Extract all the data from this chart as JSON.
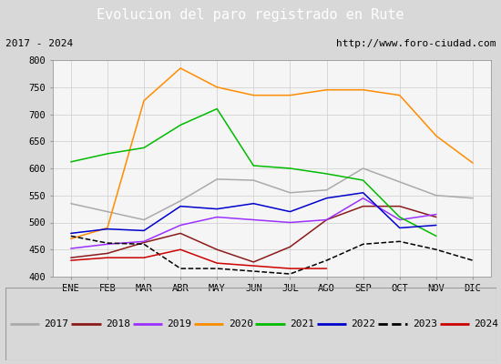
{
  "title": "Evolucion del paro registrado en Rute",
  "title_bg": "#4472c4",
  "subtitle_left": "2017 - 2024",
  "subtitle_right": "http://www.foro-ciudad.com",
  "xlabel_ticks": [
    "ENE",
    "FEB",
    "MAR",
    "ABR",
    "MAY",
    "JUN",
    "JUL",
    "AGO",
    "SEP",
    "OCT",
    "NOV",
    "DIC"
  ],
  "ylim": [
    400,
    800
  ],
  "yticks": [
    400,
    450,
    500,
    550,
    600,
    650,
    700,
    750,
    800
  ],
  "series": {
    "2017": {
      "color": "#aaaaaa",
      "linestyle": "-",
      "data": [
        535,
        520,
        505,
        540,
        580,
        578,
        555,
        560,
        600,
        575,
        550,
        545
      ]
    },
    "2018": {
      "color": "#8b1a1a",
      "linestyle": "-",
      "data": [
        435,
        443,
        463,
        480,
        450,
        427,
        455,
        505,
        530,
        530,
        510,
        null
      ]
    },
    "2019": {
      "color": "#9b30ff",
      "linestyle": "-",
      "data": [
        452,
        460,
        465,
        495,
        510,
        505,
        500,
        505,
        545,
        505,
        515,
        null
      ]
    },
    "2020": {
      "color": "#ff8c00",
      "linestyle": "-",
      "data": [
        470,
        490,
        725,
        785,
        750,
        735,
        735,
        745,
        745,
        735,
        660,
        610
      ]
    },
    "2021": {
      "color": "#00bb00",
      "linestyle": "-",
      "data": [
        612,
        627,
        638,
        680,
        710,
        605,
        600,
        590,
        578,
        510,
        475,
        null
      ]
    },
    "2022": {
      "color": "#0000cc",
      "linestyle": "-",
      "data": [
        480,
        488,
        485,
        530,
        525,
        535,
        520,
        545,
        555,
        490,
        495,
        null
      ]
    },
    "2023": {
      "color": "#000000",
      "linestyle": "--",
      "data": [
        475,
        462,
        460,
        415,
        415,
        410,
        405,
        430,
        460,
        465,
        450,
        430
      ]
    },
    "2024": {
      "color": "#cc0000",
      "linestyle": "-",
      "data": [
        430,
        435,
        435,
        450,
        425,
        420,
        415,
        415,
        null,
        null,
        null,
        null
      ]
    }
  },
  "legend_order": [
    "2017",
    "2018",
    "2019",
    "2020",
    "2021",
    "2022",
    "2023",
    "2024"
  ],
  "background_color": "#d8d8d8",
  "plot_bg_color": "#f5f5f5",
  "grid_color": "#cccccc",
  "subtitle_bg": "#e8e8e8"
}
